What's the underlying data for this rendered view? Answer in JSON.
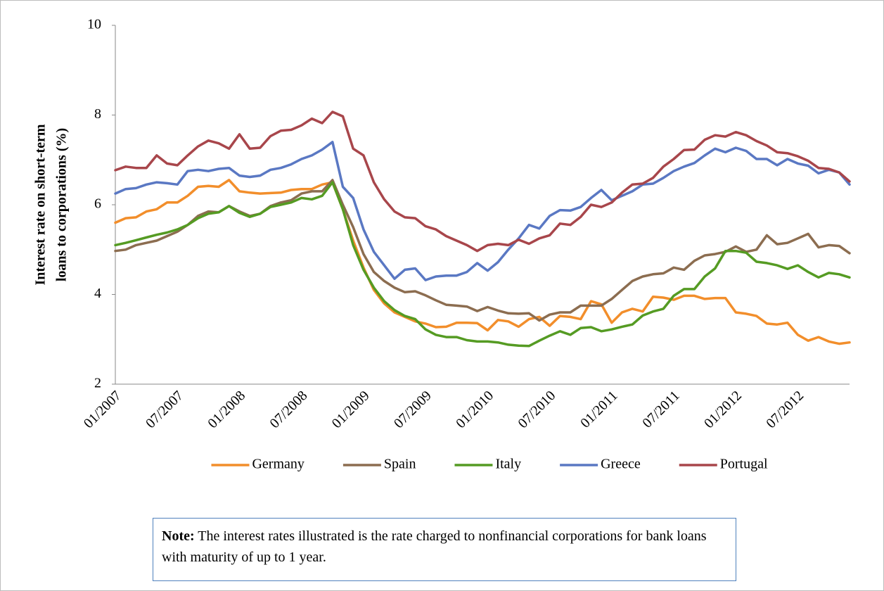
{
  "chart_data": {
    "type": "line",
    "ylabel": [
      "Interest rate on short-term",
      "loans to corporations (%)"
    ],
    "categories": [
      "01/2007",
      null,
      null,
      null,
      null,
      null,
      "07/2007",
      null,
      null,
      null,
      null,
      null,
      "01/2008",
      null,
      null,
      null,
      null,
      null,
      "07/2008",
      null,
      null,
      null,
      null,
      null,
      "01/2009",
      null,
      null,
      null,
      null,
      null,
      "07/2009",
      null,
      null,
      null,
      null,
      null,
      "01/2010",
      null,
      null,
      null,
      null,
      null,
      "07/2010",
      null,
      null,
      null,
      null,
      null,
      "01/2011",
      null,
      null,
      null,
      null,
      null,
      "07/2011",
      null,
      null,
      null,
      null,
      null,
      "01/2012",
      null,
      null,
      null,
      null,
      null,
      "07/2012",
      null,
      null,
      null,
      null,
      null
    ],
    "ylim": [
      2,
      10
    ],
    "yticks": [
      2,
      4,
      6,
      8,
      10
    ],
    "grid": false,
    "legend": "bottom",
    "series": [
      {
        "name": "Germany",
        "color": "#f28e2b",
        "values": [
          5.6,
          5.7,
          5.72,
          5.85,
          5.9,
          6.05,
          6.05,
          6.2,
          6.4,
          6.42,
          6.4,
          6.55,
          6.3,
          6.27,
          6.25,
          6.26,
          6.27,
          6.33,
          6.35,
          6.35,
          6.45,
          6.5,
          5.9,
          5.2,
          4.6,
          4.1,
          3.8,
          3.6,
          3.5,
          3.4,
          3.35,
          3.27,
          3.28,
          3.37,
          3.37,
          3.36,
          3.2,
          3.43,
          3.4,
          3.28,
          3.45,
          3.5,
          3.3,
          3.52,
          3.5,
          3.45,
          3.85,
          3.78,
          3.37,
          3.6,
          3.68,
          3.62,
          3.95,
          3.93,
          3.88,
          3.97,
          3.97,
          3.9,
          3.92,
          3.92,
          3.6,
          3.57,
          3.52,
          3.35,
          3.33,
          3.37,
          3.1,
          2.97,
          3.05,
          2.95,
          2.9,
          2.93
        ]
      },
      {
        "name": "Spain",
        "color": "#8c6d50",
        "values": [
          4.97,
          5.0,
          5.1,
          5.15,
          5.2,
          5.3,
          5.4,
          5.55,
          5.75,
          5.85,
          5.83,
          5.97,
          5.85,
          5.75,
          5.8,
          5.97,
          6.05,
          6.1,
          6.25,
          6.3,
          6.3,
          6.55,
          6.0,
          5.5,
          4.9,
          4.5,
          4.3,
          4.15,
          4.05,
          4.07,
          3.98,
          3.87,
          3.77,
          3.75,
          3.73,
          3.63,
          3.72,
          3.64,
          3.58,
          3.57,
          3.58,
          3.42,
          3.55,
          3.6,
          3.6,
          3.75,
          3.75,
          3.75,
          3.9,
          4.1,
          4.3,
          4.4,
          4.45,
          4.47,
          4.6,
          4.55,
          4.75,
          4.87,
          4.9,
          4.95,
          5.07,
          4.95,
          5.0,
          5.32,
          5.12,
          5.15,
          5.25,
          5.35,
          5.05,
          5.1,
          5.08,
          4.92
        ]
      },
      {
        "name": "Italy",
        "color": "#559b23",
        "values": [
          5.1,
          5.15,
          5.21,
          5.27,
          5.33,
          5.38,
          5.45,
          5.55,
          5.7,
          5.8,
          5.83,
          5.97,
          5.82,
          5.73,
          5.8,
          5.95,
          6.0,
          6.05,
          6.15,
          6.12,
          6.2,
          6.5,
          5.9,
          5.1,
          4.55,
          4.15,
          3.85,
          3.65,
          3.52,
          3.45,
          3.22,
          3.1,
          3.05,
          3.05,
          2.98,
          2.95,
          2.95,
          2.93,
          2.88,
          2.86,
          2.85,
          2.97,
          3.08,
          3.18,
          3.1,
          3.25,
          3.27,
          3.18,
          3.22,
          3.28,
          3.33,
          3.53,
          3.62,
          3.68,
          3.97,
          4.12,
          4.12,
          4.4,
          4.58,
          4.97,
          4.97,
          4.93,
          4.73,
          4.7,
          4.65,
          4.57,
          4.65,
          4.5,
          4.38,
          4.48,
          4.45,
          4.38
        ]
      },
      {
        "name": "Greece",
        "color": "#5a78c3",
        "values": [
          6.25,
          6.35,
          6.37,
          6.45,
          6.5,
          6.48,
          6.45,
          6.75,
          6.78,
          6.75,
          6.8,
          6.82,
          6.65,
          6.62,
          6.65,
          6.78,
          6.82,
          6.9,
          7.02,
          7.1,
          7.23,
          7.4,
          6.4,
          6.15,
          5.45,
          4.95,
          4.65,
          4.35,
          4.55,
          4.58,
          4.32,
          4.4,
          4.42,
          4.42,
          4.5,
          4.7,
          4.53,
          4.72,
          5.0,
          5.25,
          5.55,
          5.47,
          5.75,
          5.88,
          5.87,
          5.95,
          6.15,
          6.33,
          6.1,
          6.2,
          6.3,
          6.45,
          6.47,
          6.6,
          6.75,
          6.85,
          6.93,
          7.1,
          7.25,
          7.17,
          7.27,
          7.2,
          7.02,
          7.02,
          6.88,
          7.02,
          6.92,
          6.87,
          6.7,
          6.78,
          6.72,
          6.45
        ]
      },
      {
        "name": "Portugal",
        "color": "#a8464b",
        "values": [
          6.77,
          6.85,
          6.82,
          6.82,
          7.1,
          6.92,
          6.88,
          7.1,
          7.3,
          7.43,
          7.37,
          7.25,
          7.57,
          7.25,
          7.27,
          7.53,
          7.65,
          7.67,
          7.77,
          7.92,
          7.82,
          8.07,
          7.97,
          7.25,
          7.1,
          6.5,
          6.12,
          5.85,
          5.72,
          5.7,
          5.52,
          5.45,
          5.3,
          5.2,
          5.1,
          4.97,
          5.1,
          5.13,
          5.1,
          5.22,
          5.13,
          5.25,
          5.32,
          5.58,
          5.55,
          5.73,
          6.0,
          5.95,
          6.05,
          6.27,
          6.45,
          6.47,
          6.6,
          6.85,
          7.02,
          7.22,
          7.23,
          7.45,
          7.55,
          7.52,
          7.62,
          7.55,
          7.42,
          7.32,
          7.17,
          7.15,
          7.08,
          6.98,
          6.82,
          6.8,
          6.72,
          6.52
        ]
      }
    ],
    "note": {
      "label": "Note:",
      "text": "The interest rates illustrated is the rate charged to nonfinancial corporations for bank loans with maturity of up to 1 year."
    }
  }
}
